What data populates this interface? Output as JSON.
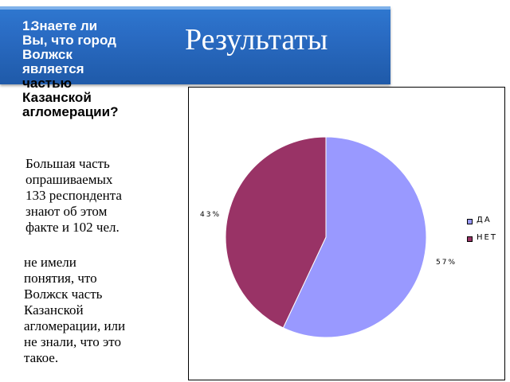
{
  "header": {
    "title": "Результаты"
  },
  "question": {
    "number": "1.",
    "lines_on_blue": [
      "Знаете ли",
      "Вы, что город",
      "Волжск",
      "является"
    ],
    "lines_on_white": [
      "частью",
      "Казанской",
      "агломерации?"
    ]
  },
  "body": {
    "paragraph1": [
      "Большая часть",
      "опрашиваемых",
      "133 респондента",
      "знают об этом",
      "факте и 102 чел."
    ],
    "paragraph2": [
      "не имели",
      "понятия, что",
      "Волжск часть",
      "Казанской",
      "агломерации, или",
      "не знали, что это",
      "такое."
    ]
  },
  "chart_data": {
    "type": "pie",
    "title": "",
    "slices": [
      {
        "label": "ДА",
        "value": 57,
        "value_label": "57%",
        "color": "#9999ff"
      },
      {
        "label": "НЕТ",
        "value": 43,
        "value_label": "43%",
        "color": "#993366"
      }
    ],
    "start_angle_deg": 0,
    "direction": "clockwise",
    "legend_position": "right",
    "grid": false
  }
}
